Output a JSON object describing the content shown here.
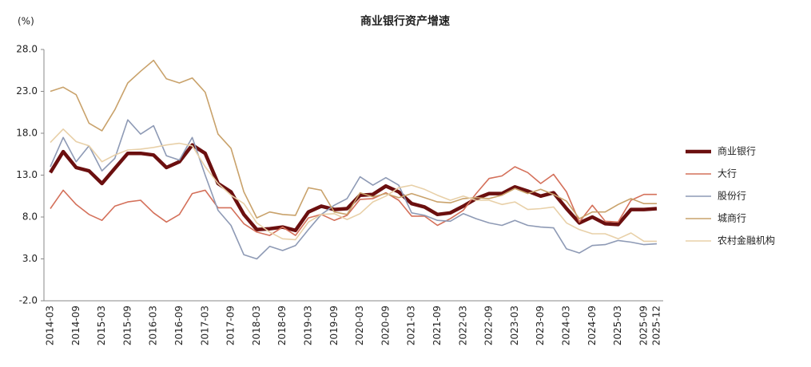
{
  "chart_data": {
    "type": "line",
    "title": "商业银行资产增速",
    "y_label": "(%)",
    "categories": [
      "2014-03",
      null,
      "2014-09",
      null,
      "2015-03",
      null,
      "2015-09",
      null,
      "2016-03",
      null,
      "2016-09",
      null,
      "2017-03",
      null,
      "2017-09",
      null,
      "2018-03",
      null,
      "2018-09",
      null,
      "2019-03",
      null,
      "2019-09",
      null,
      "2020-03",
      null,
      "2020-09",
      null,
      "2021-03",
      null,
      "2021-09",
      null,
      "2022-03",
      null,
      "2022-09",
      null,
      "2023-03",
      null,
      "2023-09",
      null,
      "2024-03",
      null,
      "2024-09",
      null,
      "2025-03",
      null,
      "2025-09",
      "2025-12"
    ],
    "ylim": [
      -2,
      28
    ],
    "yticks": [
      {
        "value": -2,
        "label": "-2.0"
      },
      {
        "value": 3,
        "label": "3.0"
      },
      {
        "value": 8,
        "label": "8.0"
      },
      {
        "value": 13,
        "label": "13.0"
      },
      {
        "value": 18,
        "label": "18.0"
      },
      {
        "value": 23,
        "label": "23.0"
      },
      {
        "value": 28,
        "label": "28.0"
      }
    ],
    "grid": false,
    "legend": "right",
    "series": [
      {
        "name": "商业银行",
        "color": "#6b0f0f",
        "values": [
          13.3,
          15.8,
          13.9,
          13.5,
          12.0,
          13.8,
          15.6,
          15.6,
          15.4,
          13.9,
          14.6,
          16.6,
          15.6,
          12.0,
          11.0,
          8.3,
          6.5,
          6.6,
          6.8,
          6.4,
          8.6,
          9.3,
          8.9,
          9.0,
          10.6,
          10.7,
          11.7,
          11.0,
          9.6,
          9.2,
          8.3,
          8.5,
          9.3,
          10.2,
          10.8,
          10.8,
          11.6,
          11.1,
          10.5,
          10.9,
          9.0,
          7.3,
          8.0,
          7.2,
          7.1,
          8.9,
          8.9,
          9.0
        ]
      },
      {
        "name": "大行",
        "color": "#d4705a",
        "values": [
          9.0,
          11.2,
          9.5,
          8.3,
          7.6,
          9.3,
          9.8,
          10.0,
          8.5,
          7.4,
          8.3,
          10.8,
          11.2,
          9.1,
          9.1,
          7.2,
          6.2,
          5.8,
          6.8,
          5.8,
          7.9,
          8.3,
          7.6,
          8.2,
          10.1,
          10.2,
          10.9,
          10.0,
          8.1,
          8.1,
          7.0,
          7.8,
          8.8,
          10.8,
          12.6,
          12.9,
          14.0,
          13.3,
          12.0,
          13.1,
          11.0,
          7.4,
          9.4,
          7.5,
          7.4,
          10.0,
          10.7,
          10.7
        ]
      },
      {
        "name": "股份行",
        "color": "#8e9ab5",
        "values": [
          14.0,
          17.5,
          14.6,
          16.5,
          13.5,
          15.0,
          19.6,
          17.9,
          18.9,
          15.3,
          14.8,
          17.5,
          13.0,
          8.8,
          7.0,
          3.5,
          3.0,
          4.5,
          4.0,
          4.6,
          6.5,
          8.3,
          9.4,
          10.2,
          12.8,
          11.8,
          12.7,
          11.8,
          8.5,
          8.2,
          7.6,
          7.5,
          8.4,
          7.8,
          7.3,
          7.0,
          7.6,
          7.0,
          6.8,
          6.7,
          4.2,
          3.7,
          4.6,
          4.7,
          5.2,
          5.0,
          4.7,
          4.8
        ]
      },
      {
        "name": "城商行",
        "color": "#c9a26b",
        "values": [
          23.0,
          23.5,
          22.6,
          19.2,
          18.3,
          20.8,
          24.0,
          25.4,
          26.7,
          24.5,
          24.0,
          24.6,
          22.9,
          17.9,
          16.2,
          11.0,
          7.9,
          8.6,
          8.3,
          8.2,
          11.5,
          11.2,
          8.6,
          8.3,
          10.9,
          10.4,
          10.8,
          10.3,
          10.8,
          10.3,
          9.8,
          9.7,
          10.2,
          10.3,
          10.2,
          10.6,
          11.4,
          10.8,
          11.3,
          10.7,
          9.9,
          7.8,
          8.6,
          8.6,
          9.5,
          10.2,
          9.6,
          9.6
        ]
      },
      {
        "name": "农村金融机构",
        "color": "#e8d0a8",
        "values": [
          16.9,
          18.5,
          17.0,
          16.5,
          14.6,
          15.4,
          16.0,
          16.1,
          16.3,
          16.6,
          16.8,
          16.5,
          14.0,
          12.0,
          10.6,
          9.6,
          7.3,
          6.2,
          5.4,
          5.3,
          7.4,
          8.3,
          8.4,
          7.7,
          8.4,
          9.8,
          10.5,
          11.5,
          11.8,
          11.3,
          10.6,
          10.0,
          10.5,
          10.0,
          10.0,
          9.5,
          9.8,
          8.9,
          9.0,
          9.2,
          7.3,
          6.5,
          6.0,
          6.0,
          5.4,
          6.1,
          5.1,
          5.1
        ]
      }
    ]
  }
}
